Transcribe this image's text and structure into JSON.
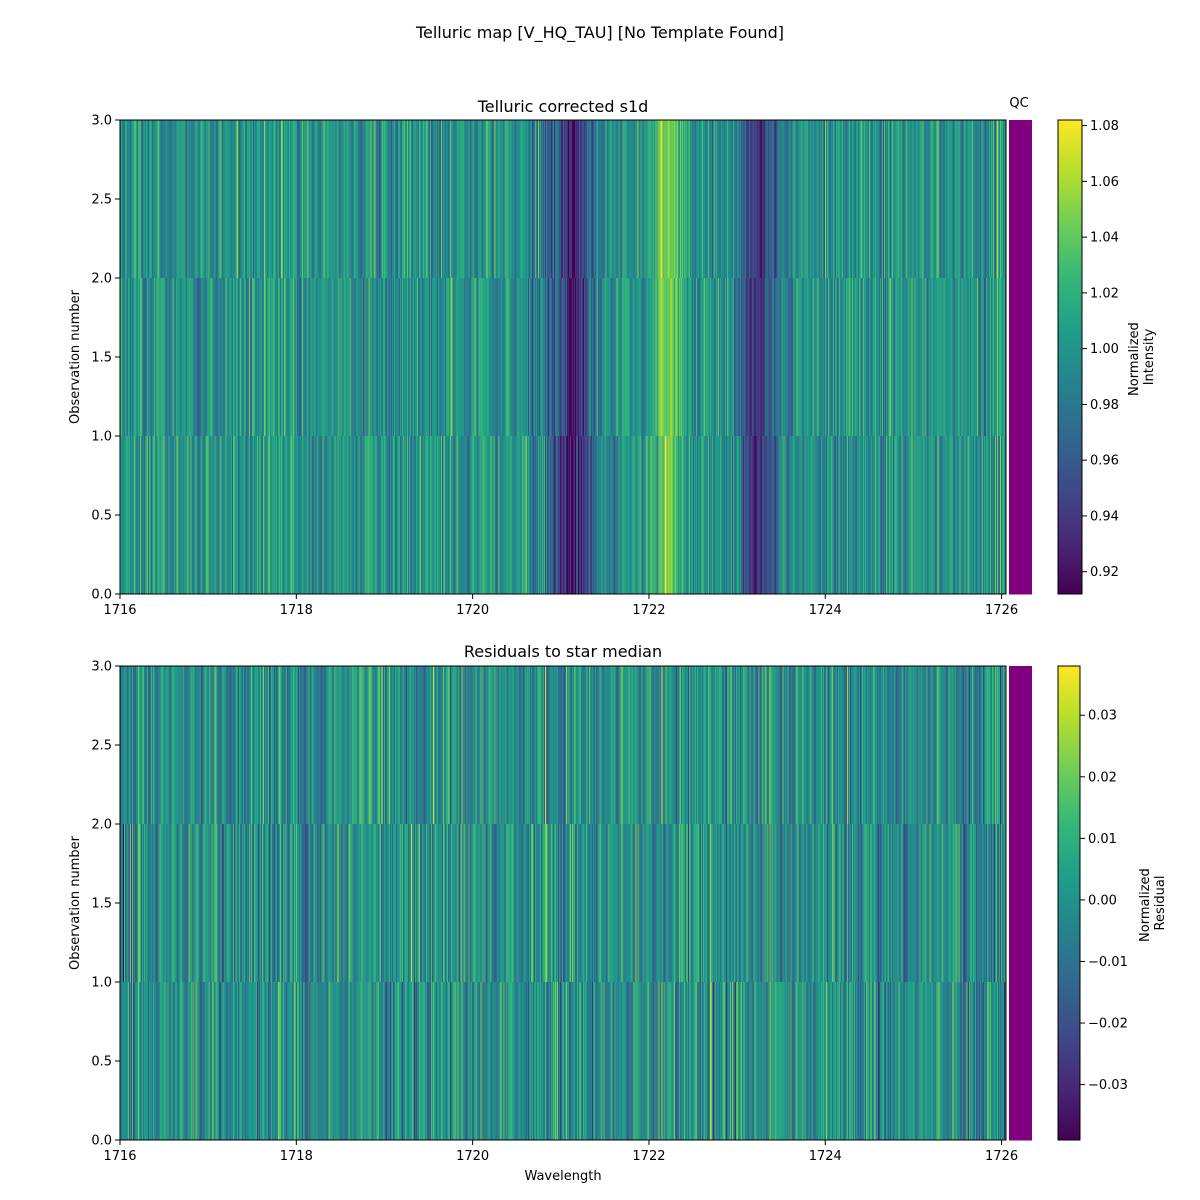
{
  "figure": {
    "suptitle": "Telluric map [V_HQ_TAU] [No Template Found]",
    "colors": {
      "qc_bar": "#800080",
      "axis": "#000000"
    },
    "colormap": "viridis"
  },
  "chart_data": [
    {
      "type": "heatmap",
      "title": "Telluric corrected s1d",
      "xlabel": "",
      "ylabel": "Observation number",
      "xlim": [
        1716,
        1726.05
      ],
      "ylim": [
        0,
        3
      ],
      "x_ticks": [
        1716,
        1718,
        1720,
        1722,
        1724,
        1726
      ],
      "y_ticks": [
        0.0,
        0.5,
        1.0,
        1.5,
        2.0,
        2.5,
        3.0
      ],
      "rows": [
        "0",
        "1",
        "2"
      ],
      "n_columns": 880,
      "colorbar": {
        "label_lines": [
          "Normalized",
          "Intensity"
        ],
        "range": [
          0.912,
          1.082
        ],
        "ticks": [
          0.92,
          0.94,
          0.96,
          0.98,
          1.0,
          1.02,
          1.04,
          1.06,
          1.08
        ]
      },
      "features": [
        {
          "center": 1721.15,
          "width": 0.18,
          "depth": -0.07
        },
        {
          "center": 1723.25,
          "width": 0.16,
          "depth": -0.06
        },
        {
          "center": 1722.2,
          "width": 0.12,
          "depth": 0.045
        }
      ],
      "base": 1.0,
      "noise": 0.022,
      "qc": {
        "label": "QC",
        "values": [
          1,
          1,
          1
        ]
      }
    },
    {
      "type": "heatmap",
      "title": "Residuals to star median",
      "xlabel": "Wavelength",
      "ylabel": "Observation number",
      "xlim": [
        1716,
        1726.05
      ],
      "ylim": [
        0,
        3
      ],
      "x_ticks": [
        1716,
        1718,
        1720,
        1722,
        1724,
        1726
      ],
      "y_ticks": [
        0.0,
        0.5,
        1.0,
        1.5,
        2.0,
        2.5,
        3.0
      ],
      "rows": [
        "0",
        "1",
        "2"
      ],
      "n_columns": 880,
      "colorbar": {
        "label_lines": [
          "Normalized",
          "Residual"
        ],
        "range": [
          -0.039,
          0.038
        ],
        "ticks": [
          -0.03,
          -0.02,
          -0.01,
          0.0,
          0.01,
          0.02,
          0.03
        ]
      },
      "features": [],
      "base": 0.0,
      "noise": 0.012,
      "qc": {
        "label": "",
        "values": [
          1,
          1,
          1
        ]
      }
    }
  ]
}
